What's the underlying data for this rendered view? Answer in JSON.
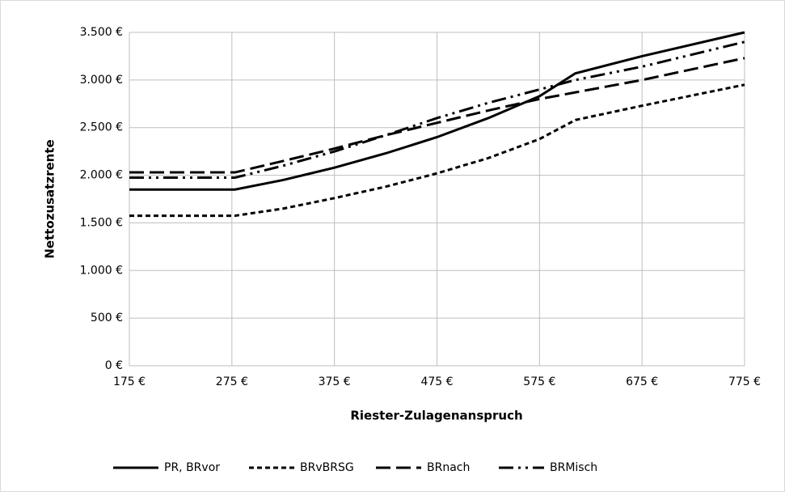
{
  "chart_data": {
    "type": "line",
    "x_label": "Riester-Zulagenanspruch",
    "y_label": "Nettozusatzrente",
    "x": [
      175,
      278,
      325,
      375,
      425,
      475,
      525,
      575,
      610,
      675,
      775
    ],
    "series": [
      {
        "name": "PR, BRvor",
        "color": "#000000",
        "style": "solid",
        "values": [
          1850,
          1850,
          1950,
          2080,
          2230,
          2400,
          2600,
          2830,
          3070,
          3250,
          3500
        ]
      },
      {
        "name": "BRvBRSG",
        "color": "#000000",
        "style": "short-dash",
        "values": [
          1575,
          1575,
          1650,
          1760,
          1880,
          2020,
          2180,
          2380,
          2580,
          2730,
          2950
        ]
      },
      {
        "name": "BRnach",
        "color": "#000000",
        "style": "long-dash",
        "values": [
          2030,
          2030,
          2150,
          2280,
          2420,
          2550,
          2680,
          2800,
          2870,
          3000,
          3230
        ]
      },
      {
        "name": "BRMisch",
        "color": "#000000",
        "style": "long-dash-dot-dot",
        "values": [
          1975,
          1975,
          2100,
          2250,
          2420,
          2600,
          2760,
          2900,
          3000,
          3140,
          3400
        ]
      }
    ],
    "xlim": [
      175,
      775
    ],
    "xticks": [
      {
        "value": 175,
        "label": "175 €"
      },
      {
        "value": 275,
        "label": "275 €"
      },
      {
        "value": 375,
        "label": "375 €"
      },
      {
        "value": 475,
        "label": "475 €"
      },
      {
        "value": 575,
        "label": "575 €"
      },
      {
        "value": 675,
        "label": "675 €"
      },
      {
        "value": 775,
        "label": "775 €"
      }
    ],
    "ylim": [
      0,
      3500
    ],
    "yticks": [
      {
        "value": 0,
        "label": "0 €"
      },
      {
        "value": 500,
        "label": "500 €"
      },
      {
        "value": 1000,
        "label": "1.000 €"
      },
      {
        "value": 1500,
        "label": "1.500 €"
      },
      {
        "value": 2000,
        "label": "2.000 €"
      },
      {
        "value": 2500,
        "label": "2.500 €"
      },
      {
        "value": 3000,
        "label": "3.000 €"
      },
      {
        "value": 3500,
        "label": "3.500 €"
      }
    ],
    "grid": true,
    "legend": "bottom"
  }
}
